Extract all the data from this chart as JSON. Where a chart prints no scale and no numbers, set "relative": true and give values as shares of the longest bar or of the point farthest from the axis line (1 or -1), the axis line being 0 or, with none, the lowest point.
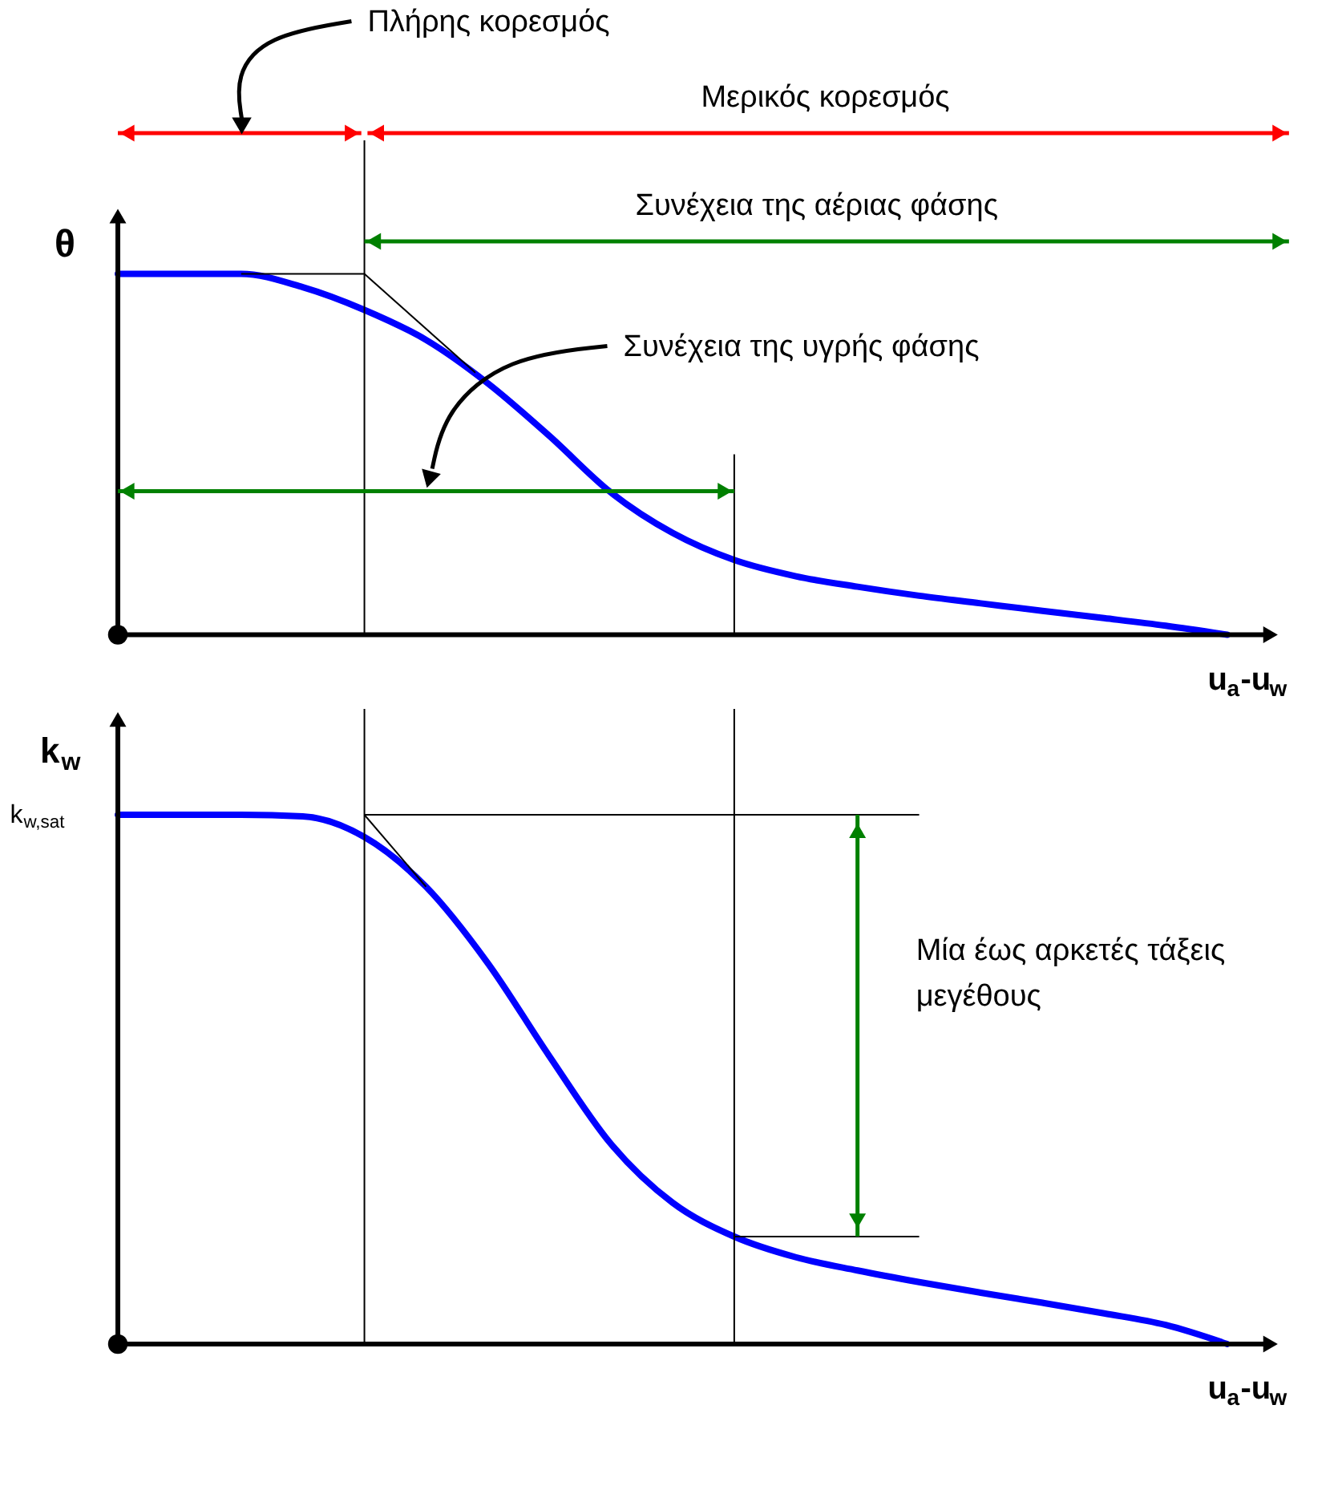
{
  "chart_data": [
    {
      "type": "line",
      "relative": true,
      "ylabel": "θ",
      "xlabel": "u$_{a}$-u$_{w}$",
      "categories": [
        null,
        null,
        null,
        null,
        null,
        null,
        null,
        null,
        null,
        null,
        null,
        null,
        null,
        null,
        null,
        null,
        null,
        null,
        null
      ],
      "series": [
        {
          "color": "#0000ff",
          "values": [
            1,
            1,
            1,
            0.963,
            0.9,
            0.817,
            0.697,
            0.551,
            0.394,
            0.282,
            0.207,
            0.162,
            0.133,
            0.108,
            0.087,
            0.066,
            0.046,
            0.025,
            0
          ]
        }
      ],
      "annotations": [
        "Πλήρης κορεσμός",
        "Μερικός κορεσμός",
        "Συνέχεια της αέριας φάσης",
        "Συνέχεια της υγρής φάσης"
      ]
    },
    {
      "type": "line",
      "relative": true,
      "ylabel": "k$_{w}$",
      "xlabel": "u$_{a}$-u$_{w}$",
      "categories": [
        null,
        null,
        null,
        null,
        null,
        null,
        null,
        null,
        null,
        null,
        null,
        null,
        null,
        null,
        null,
        null,
        null,
        null,
        null
      ],
      "series": [
        {
          "color": "#0000ff",
          "values": [
            1,
            1,
            1,
            0.997,
            0.958,
            0.864,
            0.72,
            0.544,
            0.378,
            0.267,
            0.203,
            0.164,
            0.139,
            0.117,
            0.097,
            0.078,
            0.058,
            0.036,
            0
          ]
        }
      ],
      "annotations": [
        "k$_{w,sat}$",
        "Μία έως αρκετές τάξεις\nμεγέθους"
      ]
    }
  ]
}
